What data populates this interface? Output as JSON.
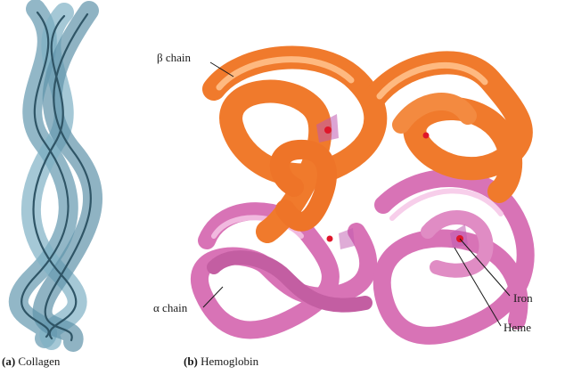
{
  "figure": {
    "panels": [
      {
        "id": "a",
        "caption_key": "(a)",
        "caption_text": "Collagen"
      },
      {
        "id": "b",
        "caption_key": "(b)",
        "caption_text": "Hemoglobin"
      }
    ],
    "labels": {
      "beta_chain": "β chain",
      "alpha_chain": "α chain",
      "iron": "Iron",
      "heme": "Heme"
    },
    "colors": {
      "collagen": "#6e9fb4",
      "collagen_dark": "#2f5566",
      "beta_chain": "#f07a2c",
      "beta_light": "#ffc089",
      "alpha_chain": "#d873b6",
      "alpha_light": "#f6c6e6",
      "iron": "#e0162a"
    }
  }
}
